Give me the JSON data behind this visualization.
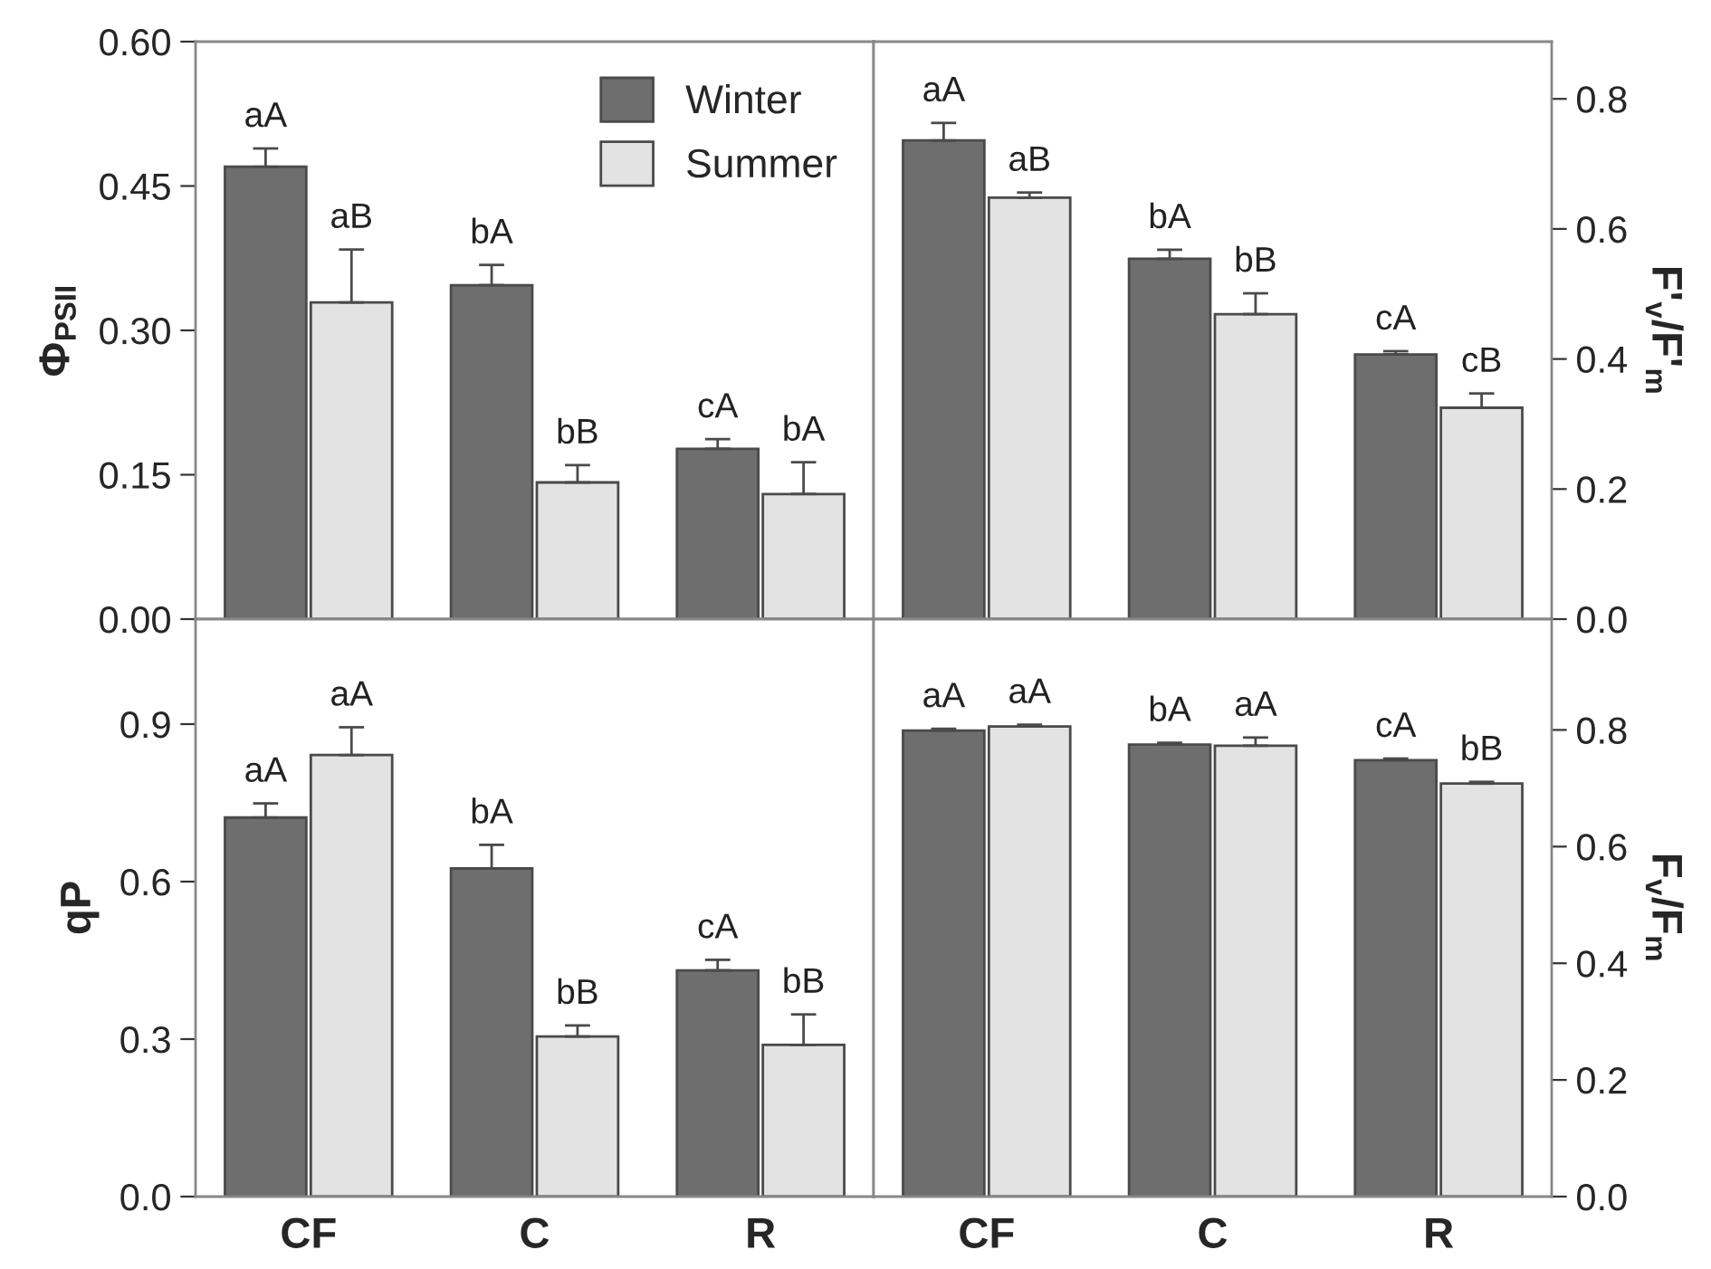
{
  "chart_data": [
    {
      "type": "bar",
      "ylabel": "Φ$_{PSII}$",
      "categories": [
        null,
        null,
        null
      ],
      "ylim": [
        0,
        0.6
      ],
      "yticks": [
        {
          "value": 0,
          "label": "0.00"
        },
        {
          "value": 0.15,
          "label": "0.15"
        },
        {
          "value": 0.3,
          "label": "0.30"
        },
        {
          "value": 0.45,
          "label": "0.45"
        },
        {
          "value": 0.6,
          "label": "0.60"
        }
      ],
      "tick_labels": "y",
      "legend": "top right",
      "grid": false,
      "series": [
        {
          "name": "Winter",
          "color": "#6e6e6e",
          "values": [
            0.47,
            0.347,
            0.177
          ],
          "errors": [
            [
              0.47,
              0.489
            ],
            [
              0.347,
              0.368
            ],
            [
              0.177,
              0.187
            ]
          ],
          "value_labels": [
            "aA",
            "bA",
            "cA"
          ]
        },
        {
          "name": "Summer",
          "color": "#e3e3e3",
          "values": [
            0.329,
            0.142,
            0.13
          ],
          "errors": [
            [
              0.329,
              0.384
            ],
            [
              0.142,
              0.16
            ],
            [
              0.13,
              0.163
            ]
          ],
          "value_labels": [
            "aB",
            "bB",
            "bA"
          ]
        }
      ]
    },
    {
      "type": "bar",
      "ylabel": "F'$_{v}$/F'$_{m}$",
      "categories": [
        null,
        null,
        null
      ],
      "ylim": [
        0,
        0.888
      ],
      "yticks": [
        {
          "value": 0,
          "label": "0.0"
        },
        {
          "value": 0.2,
          "label": "0.2"
        },
        {
          "value": 0.4,
          "label": "0.4"
        },
        {
          "value": 0.6,
          "label": "0.6"
        },
        {
          "value": 0.8,
          "label": "0.8"
        }
      ],
      "tick_labels": "y",
      "legend": false,
      "grid": false,
      "series": [
        {
          "color": "#6e6e6e",
          "values": [
            0.736,
            0.554,
            0.407
          ],
          "errors": [
            [
              0.736,
              0.763
            ],
            [
              0.554,
              0.568
            ],
            [
              0.407,
              0.412
            ]
          ],
          "value_labels": [
            "aA",
            "bA",
            "cA"
          ]
        },
        {
          "color": "#e3e3e3",
          "values": [
            0.648,
            0.469,
            0.325
          ],
          "errors": [
            [
              0.648,
              0.656
            ],
            [
              0.469,
              0.501
            ],
            [
              0.325,
              0.347
            ]
          ],
          "value_labels": [
            "aB",
            "bB",
            "cB"
          ]
        }
      ]
    },
    {
      "type": "bar",
      "ylabel": "qP",
      "categories": [
        "CF",
        "C",
        "R"
      ],
      "ylim": [
        0,
        1.1
      ],
      "yticks": [
        {
          "value": 0,
          "label": "0.0"
        },
        {
          "value": 0.3,
          "label": "0.3"
        },
        {
          "value": 0.6,
          "label": "0.6"
        },
        {
          "value": 0.9,
          "label": "0.9"
        }
      ],
      "legend": false,
      "grid": false,
      "series": [
        {
          "color": "#6e6e6e",
          "values": [
            0.722,
            0.625,
            0.431
          ],
          "errors": [
            [
              0.722,
              0.749
            ],
            [
              0.625,
              0.67
            ],
            [
              0.431,
              0.451
            ]
          ],
          "value_labels": [
            "aA",
            "bA",
            "cA"
          ]
        },
        {
          "color": "#e3e3e3",
          "values": [
            0.841,
            0.305,
            0.289
          ],
          "errors": [
            [
              0.841,
              0.894
            ],
            [
              0.305,
              0.326
            ],
            [
              0.289,
              0.347
            ]
          ],
          "value_labels": [
            "aA",
            "bB",
            "bB"
          ]
        }
      ]
    },
    {
      "type": "bar",
      "ylabel": "F$_{v}$/F$_{m}$",
      "categories": [
        "CF",
        "C",
        "R"
      ],
      "ylim": [
        0,
        0.99
      ],
      "yticks": [
        {
          "value": 0,
          "label": "0.0"
        },
        {
          "value": 0.2,
          "label": "0.2"
        },
        {
          "value": 0.4,
          "label": "0.4"
        },
        {
          "value": 0.6,
          "label": "0.6"
        },
        {
          "value": 0.8,
          "label": "0.8"
        }
      ],
      "legend": false,
      "grid": false,
      "series": [
        {
          "color": "#6e6e6e",
          "values": [
            0.799,
            0.775,
            0.748
          ],
          "errors": [
            [
              0.799,
              0.802
            ],
            [
              0.775,
              0.778
            ],
            [
              0.748,
              0.751
            ]
          ],
          "value_labels": [
            "aA",
            "bA",
            "cA"
          ]
        },
        {
          "color": "#e3e3e3",
          "values": [
            0.806,
            0.773,
            0.708
          ],
          "errors": [
            [
              0.806,
              0.809
            ],
            [
              0.773,
              0.787
            ],
            [
              0.708,
              0.711
            ]
          ],
          "value_labels": [
            "aA",
            "aA",
            "bB"
          ]
        }
      ]
    }
  ]
}
